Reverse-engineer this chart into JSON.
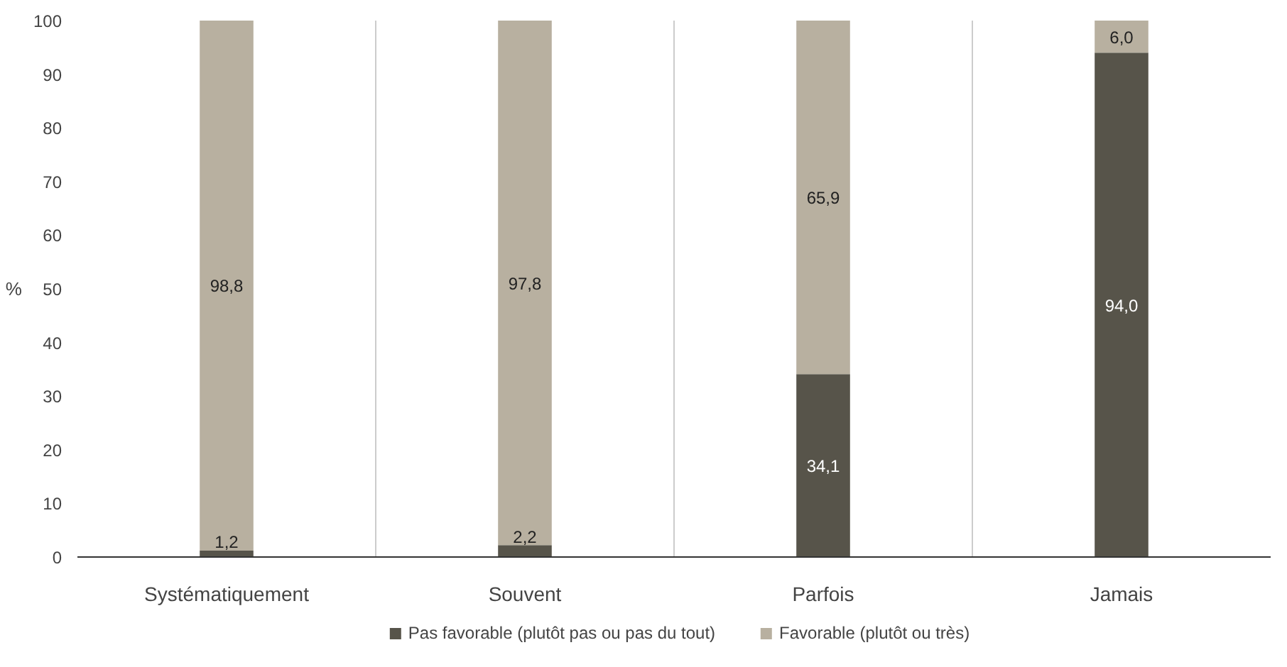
{
  "chart_data": {
    "type": "bar",
    "stacked": true,
    "ylabel": "%",
    "categories": [
      "Systématiquement",
      "Souvent",
      "Parfois",
      "Jamais"
    ],
    "series": [
      {
        "name": "Pas favorable (plutôt pas ou pas du tout)",
        "color": "#57544a",
        "values": [
          1.2,
          2.2,
          34.1,
          94.0
        ],
        "value_labels": [
          "1,2",
          "2,2",
          "34,1",
          "94,0"
        ]
      },
      {
        "name": "Favorable (plutôt ou très)",
        "color": "#b8b0a0",
        "values": [
          98.8,
          97.8,
          65.9,
          6.0
        ],
        "value_labels": [
          "98,8",
          "97,8",
          "65,9",
          "6,0"
        ]
      }
    ],
    "ylim": [
      0,
      100
    ],
    "yticks": [
      0,
      10,
      20,
      30,
      40,
      50,
      60,
      70,
      80,
      90,
      100
    ],
    "grid": "x",
    "legend": "bottom"
  }
}
